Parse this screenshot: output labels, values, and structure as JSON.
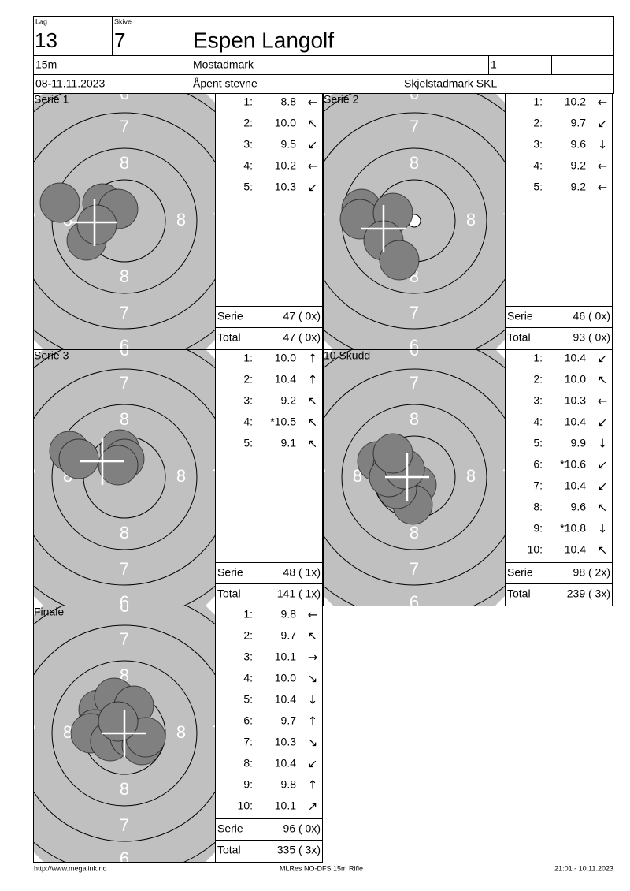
{
  "header": {
    "lag_label": "Lag",
    "lag": "13",
    "skive_label": "Skive",
    "skive": "7",
    "name": "Espen Langolf",
    "distance": "15m",
    "location": "Mostadmark",
    "relay": "1",
    "date": "08-11.11.2023",
    "event": "Åpent stevne",
    "club": "Skjelstadmark SKL"
  },
  "target_numbers": [
    "6",
    "7",
    "8"
  ],
  "panels": [
    {
      "title": "Serie 1",
      "shots": [
        {
          "label": "1:",
          "score": "8.8",
          "direction": "←"
        },
        {
          "label": "2:",
          "score": "10.0",
          "direction": "↖"
        },
        {
          "label": "3:",
          "score": "9.5",
          "direction": "↙"
        },
        {
          "label": "4:",
          "score": "10.2",
          "direction": "←"
        },
        {
          "label": "5:",
          "score": "10.3",
          "direction": "↙"
        }
      ],
      "series_label": "Serie",
      "series_total": "47 ( 0x)",
      "total_label": "Total",
      "total": "47 ( 0x)"
    },
    {
      "title": "Serie 2",
      "shots": [
        {
          "label": "1:",
          "score": "10.2",
          "direction": "←"
        },
        {
          "label": "2:",
          "score": "9.7",
          "direction": "↙"
        },
        {
          "label": "3:",
          "score": "9.6",
          "direction": "↓"
        },
        {
          "label": "4:",
          "score": "9.2",
          "direction": "←"
        },
        {
          "label": "5:",
          "score": "9.2",
          "direction": "←"
        }
      ],
      "series_label": "Serie",
      "series_total": "46 ( 0x)",
      "total_label": "Total",
      "total": "93 ( 0x)"
    },
    {
      "title": "Serie 3",
      "shots": [
        {
          "label": "1:",
          "score": "10.0",
          "direction": "↑"
        },
        {
          "label": "2:",
          "score": "10.4",
          "direction": "↑"
        },
        {
          "label": "3:",
          "score": "9.2",
          "direction": "↖"
        },
        {
          "label": "4:",
          "score": "*10.5",
          "direction": "↖"
        },
        {
          "label": "5:",
          "score": "9.1",
          "direction": "↖"
        }
      ],
      "series_label": "Serie",
      "series_total": "48 ( 1x)",
      "total_label": "Total",
      "total": "141 ( 1x)"
    },
    {
      "title": "10 Skudd",
      "shots": [
        {
          "label": "1:",
          "score": "10.4",
          "direction": "↙"
        },
        {
          "label": "2:",
          "score": "10.0",
          "direction": "↖"
        },
        {
          "label": "3:",
          "score": "10.3",
          "direction": "←"
        },
        {
          "label": "4:",
          "score": "10.4",
          "direction": "↙"
        },
        {
          "label": "5:",
          "score": "9.9",
          "direction": "↓"
        },
        {
          "label": "6:",
          "score": "*10.6",
          "direction": "↙"
        },
        {
          "label": "7:",
          "score": "10.4",
          "direction": "↙"
        },
        {
          "label": "8:",
          "score": "9.6",
          "direction": "↖"
        },
        {
          "label": "9:",
          "score": "*10.8",
          "direction": "↓"
        },
        {
          "label": "10:",
          "score": "10.4",
          "direction": "↖"
        }
      ],
      "series_label": "Serie",
      "series_total": "98 ( 2x)",
      "total_label": "Total",
      "total": "239 ( 3x)"
    },
    {
      "title": "Finale",
      "shots": [
        {
          "label": "1:",
          "score": "9.8",
          "direction": "←"
        },
        {
          "label": "2:",
          "score": "9.7",
          "direction": "↖"
        },
        {
          "label": "3:",
          "score": "10.1",
          "direction": "→"
        },
        {
          "label": "4:",
          "score": "10.0",
          "direction": "↘"
        },
        {
          "label": "5:",
          "score": "10.4",
          "direction": "↓"
        },
        {
          "label": "6:",
          "score": "9.7",
          "direction": "↑"
        },
        {
          "label": "7:",
          "score": "10.3",
          "direction": "↘"
        },
        {
          "label": "8:",
          "score": "10.4",
          "direction": "↙"
        },
        {
          "label": "9:",
          "score": "9.8",
          "direction": "↑"
        },
        {
          "label": "10:",
          "score": "10.1",
          "direction": "↗"
        }
      ],
      "series_label": "Serie",
      "series_total": "96 ( 0x)",
      "total_label": "Total",
      "total": "335 ( 3x)"
    }
  ],
  "footer": {
    "left": "http://www.megalink.no",
    "center": "MLRes NO-DFS 15m Rifle",
    "right": "21:01 - 10.11.2023"
  }
}
